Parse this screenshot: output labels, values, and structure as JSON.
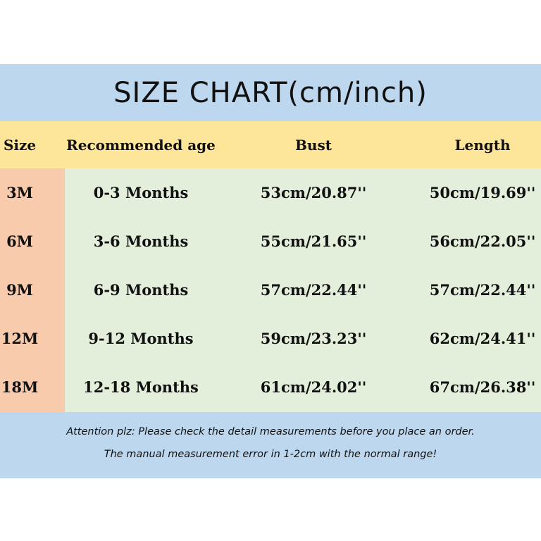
{
  "title": "SIZE CHART(cm/inch)",
  "colors": {
    "title_band": "#bcd7ee",
    "header_row": "#fde59a",
    "size_column": "#f8cbad",
    "body": "#e3eedb",
    "footer_band": "#bcd7ee"
  },
  "table": {
    "headers": [
      "Size",
      "Recommended age",
      "Bust",
      "Length"
    ],
    "rows": [
      [
        "3M",
        "0-3 Months",
        "53cm/20.87''",
        "50cm/19.69''"
      ],
      [
        "6M",
        "3-6 Months",
        "55cm/21.65''",
        "56cm/22.05''"
      ],
      [
        "9M",
        "6-9 Months",
        "57cm/22.44''",
        "57cm/22.44''"
      ],
      [
        "12M",
        "9-12 Months",
        "59cm/23.23''",
        "62cm/24.41''"
      ],
      [
        "18M",
        "12-18 Months",
        "61cm/24.02''",
        "67cm/26.38''"
      ]
    ]
  },
  "notes": [
    "Attention plz:  Please check the detail measurements before you place an order.",
    "The manual measurement error in 1-2cm with the normal range!"
  ]
}
